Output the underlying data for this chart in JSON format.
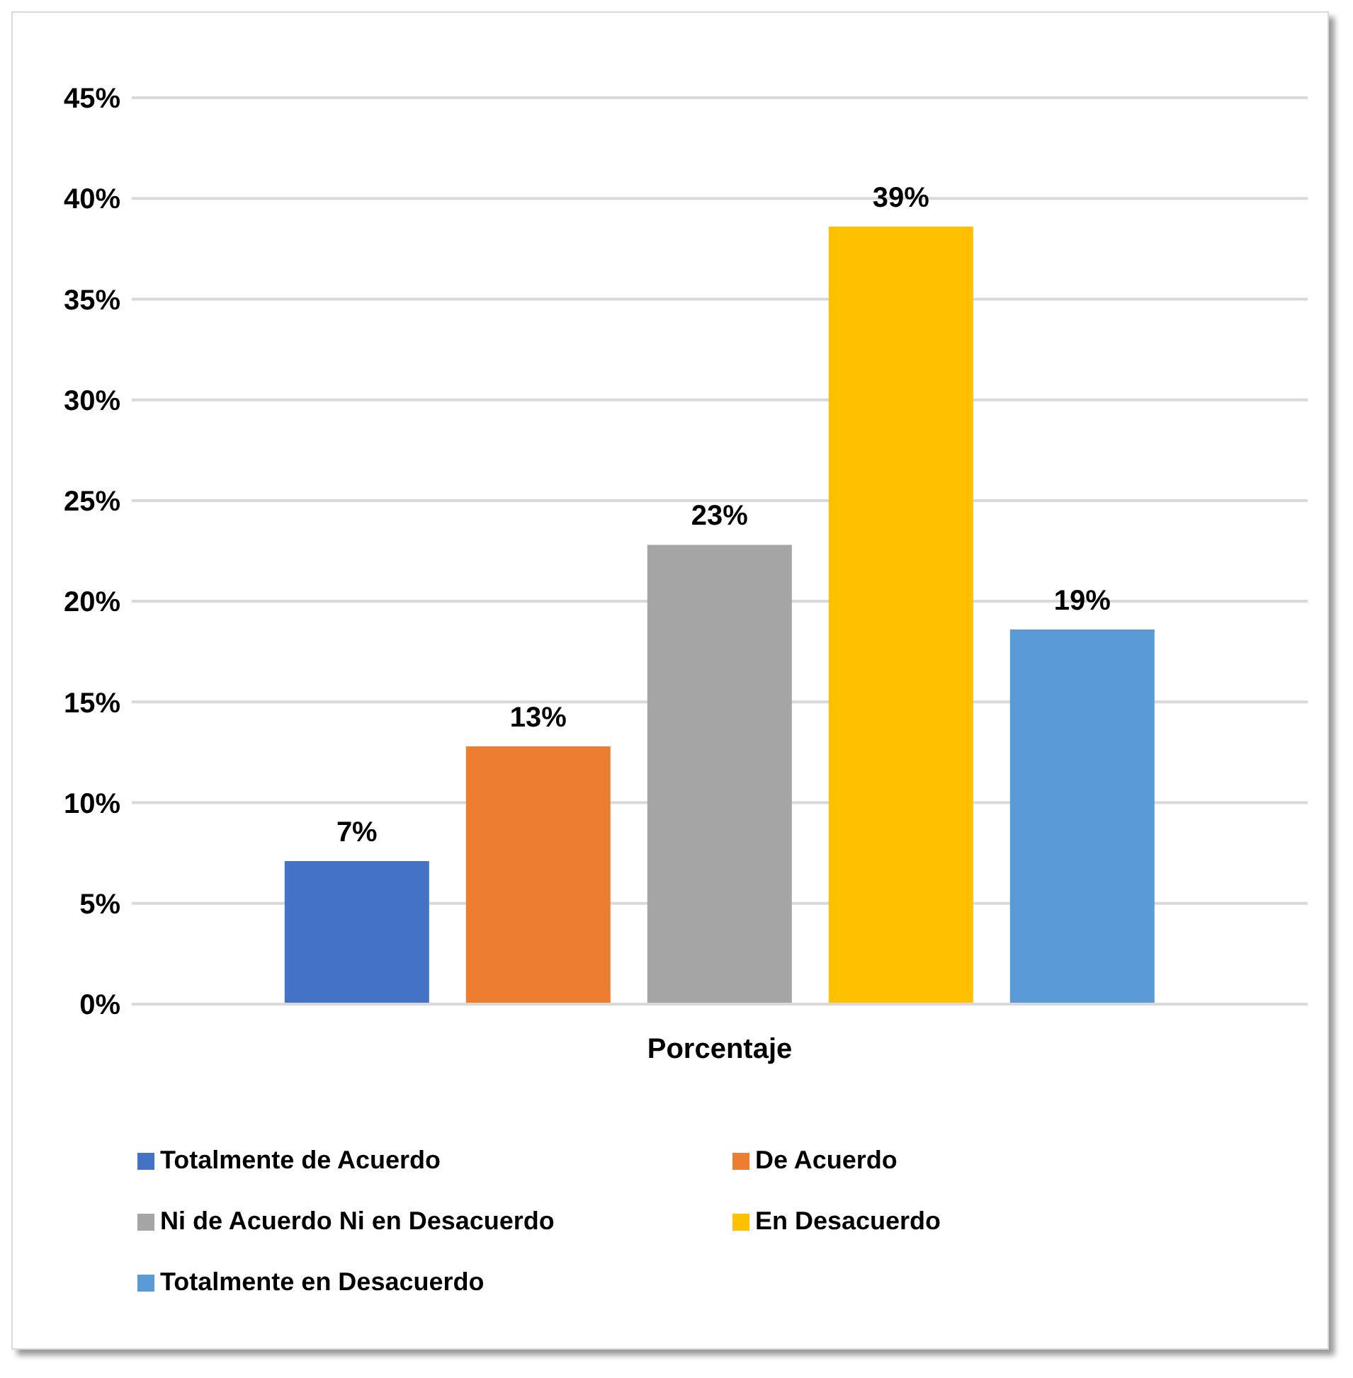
{
  "chart_data": {
    "type": "bar",
    "categories": [
      "Porcentaje"
    ],
    "series": [
      {
        "name": "Totalmente de Acuerdo",
        "color": "#4472c4",
        "values": [
          7.1
        ],
        "value_labels": [
          "7%"
        ]
      },
      {
        "name": "De Acuerdo",
        "color": "#ed7d31",
        "values": [
          12.8
        ],
        "value_labels": [
          "13%"
        ]
      },
      {
        "name": "Ni de Acuerdo Ni en Desacuerdo",
        "color": "#a5a5a5",
        "values": [
          22.8
        ],
        "value_labels": [
          "23%"
        ]
      },
      {
        "name": "En Desacuerdo",
        "color": "#ffc000",
        "values": [
          38.6
        ],
        "value_labels": [
          "39%"
        ]
      },
      {
        "name": "Totalmente en Desacuerdo",
        "color": "#5b9bd5",
        "values": [
          18.6
        ],
        "value_labels": [
          "19%"
        ]
      }
    ],
    "ylim": [
      0,
      45
    ],
    "yticks": [
      {
        "value": 0,
        "label": "0%"
      },
      {
        "value": 5,
        "label": "5%"
      },
      {
        "value": 10,
        "label": "10%"
      },
      {
        "value": 15,
        "label": "15%"
      },
      {
        "value": 20,
        "label": "20%"
      },
      {
        "value": 25,
        "label": "25%"
      },
      {
        "value": 30,
        "label": "30%"
      },
      {
        "value": 35,
        "label": "35%"
      },
      {
        "value": 40,
        "label": "40%"
      },
      {
        "value": 45,
        "label": "45%"
      }
    ],
    "grid": "y",
    "legend": "bottom"
  }
}
